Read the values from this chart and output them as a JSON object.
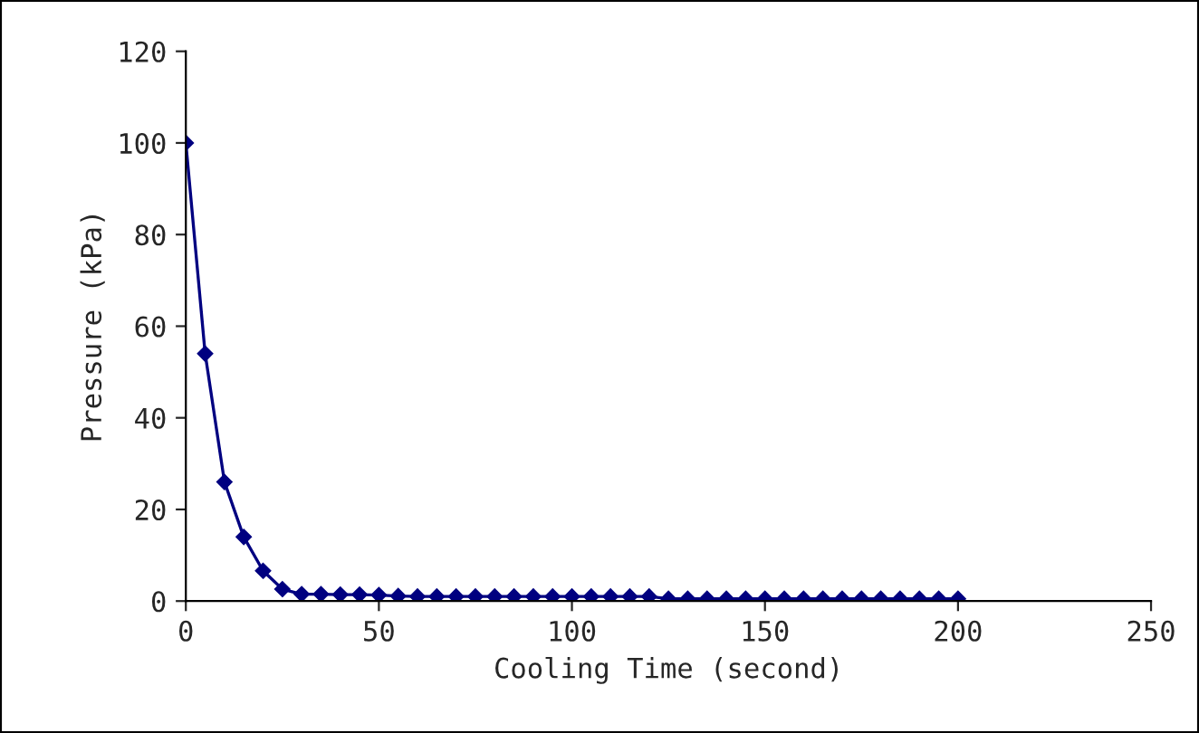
{
  "chart_data": {
    "type": "line",
    "xlabel": "Cooling Time (second)",
    "ylabel": "Pressure (kPa)",
    "x": [
      0,
      5,
      10,
      15,
      20,
      25,
      30,
      35,
      40,
      45,
      50,
      55,
      60,
      65,
      70,
      75,
      80,
      85,
      90,
      95,
      100,
      105,
      110,
      115,
      120,
      125,
      130,
      135,
      140,
      145,
      150,
      155,
      160,
      165,
      170,
      175,
      180,
      185,
      190,
      195,
      200
    ],
    "series": [
      {
        "color": "#000080",
        "values": [
          100,
          54,
          26,
          14,
          6.6,
          2.6,
          1.5,
          1.5,
          1.4,
          1.4,
          1.3,
          1.1,
          1,
          1,
          1,
          1,
          1,
          1,
          1,
          1,
          1,
          1,
          1,
          1,
          1,
          0.5,
          0.5,
          0.5,
          0.5,
          0.5,
          0.5,
          0.5,
          0.5,
          0.5,
          0.5,
          0.5,
          0.5,
          0.5,
          0.5,
          0.5,
          0.5
        ]
      }
    ],
    "xlim": [
      0,
      250
    ],
    "xticks": [
      0,
      50,
      100,
      150,
      200,
      250
    ],
    "ylim": [
      0,
      120
    ],
    "yticks": [
      0,
      20,
      40,
      60,
      80,
      100,
      120
    ],
    "marker": "diamond",
    "line_style": "solid"
  }
}
